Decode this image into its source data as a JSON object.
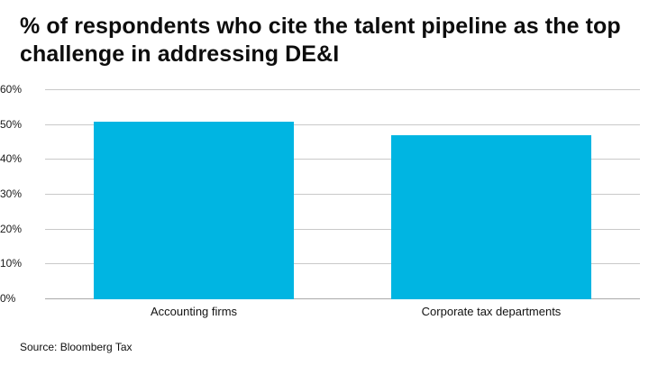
{
  "header": {
    "title": "% of respondents who cite the talent pipeline as the top challenge in addressing DE&I"
  },
  "footer": {
    "source": "Source: Bloomberg Tax"
  },
  "colors": {
    "bar": "#00b5e2",
    "grid": "#c9c9c9",
    "zero_axis": "#aaaaaa",
    "text": "#111111"
  },
  "chart_data": {
    "type": "bar",
    "categories": [
      "Accounting firms",
      "Corporate tax departments"
    ],
    "values": [
      51,
      47
    ],
    "title": "% of respondents who cite the talent pipeline as the top challenge in addressing DE&I",
    "xlabel": "",
    "ylabel": "",
    "ylim": [
      0,
      60
    ],
    "ytick_step": 10,
    "ytick_labels": [
      "0%",
      "10%",
      "20%",
      "30%",
      "40%",
      "50%",
      "60%"
    ],
    "tick_suffix": "%",
    "grid": true,
    "legend": false,
    "source": "Source: Bloomberg Tax"
  }
}
